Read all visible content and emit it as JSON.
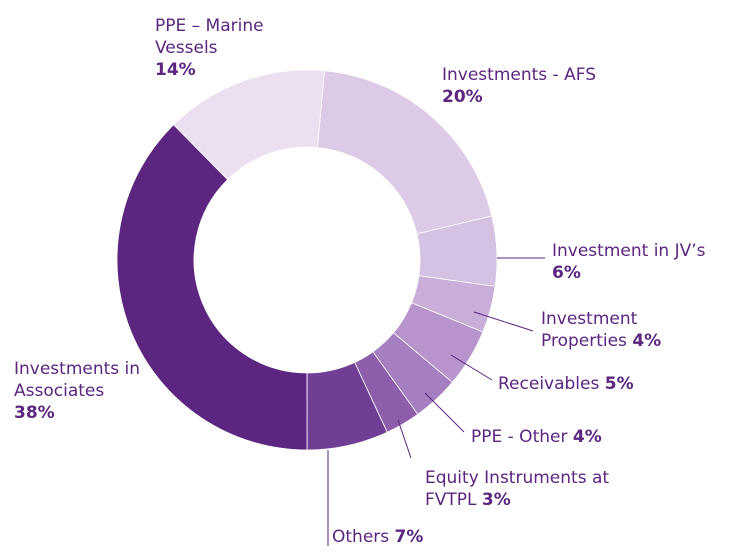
{
  "chart_data": {
    "type": "donut",
    "categories": [
      "PPE – Marine Vessels",
      "Investments - AFS",
      "Investment in JV’s",
      "Investment Properties",
      "Receivables",
      "PPE - Other",
      "Equity Instruments at FVTPL",
      "Others",
      "Investments in Associates"
    ],
    "values": [
      14,
      20,
      6,
      4,
      5,
      4,
      3,
      7,
      38
    ],
    "value_labels": [
      "14%",
      "20%",
      "6%",
      "4%",
      "5%",
      "4%",
      "3%",
      "7%",
      "38%"
    ],
    "colors": [
      "#ecdff0",
      "#dccae6",
      "#d5c1e2",
      "#c8aed9",
      "#b894cc",
      "#a67fc0",
      "#8e5eaa",
      "#713e96",
      "#5b2580"
    ]
  }
}
